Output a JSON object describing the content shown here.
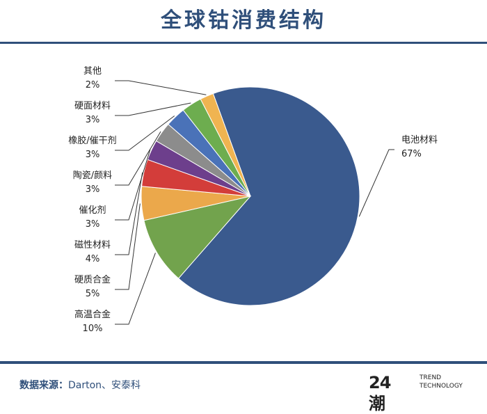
{
  "page": {
    "title": "全球钴消费结构"
  },
  "chart_data": {
    "type": "pie",
    "title": "全球钴消费结构",
    "slices": [
      {
        "label": "电池材料",
        "value": 67,
        "value_label": "67%",
        "color": "#3a5a8e"
      },
      {
        "label": "高温合金",
        "value": 10,
        "value_label": "10%",
        "color": "#72a34d"
      },
      {
        "label": "硬质合金",
        "value": 5,
        "value_label": "5%",
        "color": "#eba84b"
      },
      {
        "label": "磁性材料",
        "value": 4,
        "value_label": "4%",
        "color": "#d33d3a"
      },
      {
        "label": "催化剂",
        "value": 3,
        "value_label": "3%",
        "color": "#6d3f8c"
      },
      {
        "label": "陶瓷/颜料",
        "value": 3,
        "value_label": "3%",
        "color": "#8c8c8c"
      },
      {
        "label": "橡胶/催干剂",
        "value": 3,
        "value_label": "3%",
        "color": "#4a72b8"
      },
      {
        "label": "硬面材料",
        "value": 3,
        "value_label": "3%",
        "color": "#6dad4f"
      },
      {
        "label": "其他",
        "value": 2,
        "value_label": "2%",
        "color": "#f0b451"
      }
    ]
  },
  "footer": {
    "source_label": "数据来源：",
    "source_text": "Darton、安泰科",
    "brand_mark": "24潮",
    "brand_line1": "TREND",
    "brand_line2": "TECHNOLOGY"
  }
}
